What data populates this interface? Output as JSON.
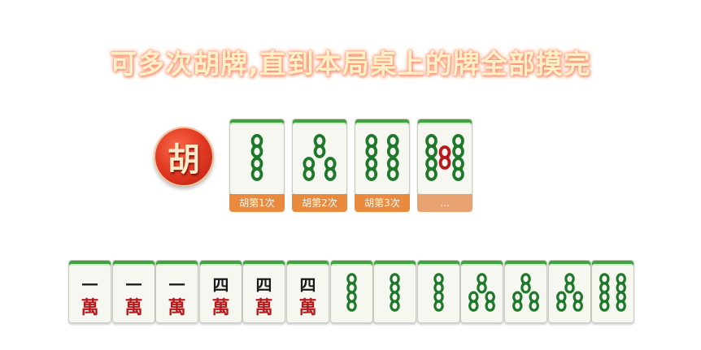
{
  "headline": "可多次胡牌,直到本局桌上的牌全部摸完",
  "badge": {
    "char": "胡",
    "color": "#e33b24"
  },
  "hu_tiles": [
    {
      "suit": "bamboo",
      "rank": 2,
      "caption": "胡第1次"
    },
    {
      "suit": "bamboo",
      "rank": 3,
      "caption": "胡第2次"
    },
    {
      "suit": "bamboo",
      "rank": 4,
      "caption": "胡第3次"
    },
    {
      "suit": "bamboo",
      "rank": 5,
      "caption": "..."
    }
  ],
  "hand": [
    {
      "suit": "wan",
      "rank_char": "一",
      "wan_char": "萬"
    },
    {
      "suit": "wan",
      "rank_char": "一",
      "wan_char": "萬"
    },
    {
      "suit": "wan",
      "rank_char": "一",
      "wan_char": "萬"
    },
    {
      "suit": "wan",
      "rank_char": "四",
      "wan_char": "萬"
    },
    {
      "suit": "wan",
      "rank_char": "四",
      "wan_char": "萬"
    },
    {
      "suit": "wan",
      "rank_char": "四",
      "wan_char": "萬"
    },
    {
      "suit": "bamboo",
      "rank": 2
    },
    {
      "suit": "bamboo",
      "rank": 2
    },
    {
      "suit": "bamboo",
      "rank": 2
    },
    {
      "suit": "bamboo",
      "rank": 3
    },
    {
      "suit": "bamboo",
      "rank": 3
    },
    {
      "suit": "bamboo",
      "rank": 3
    },
    {
      "suit": "bamboo",
      "rank": 4
    }
  ],
  "colors": {
    "tile_face": "#f7f7f2",
    "tile_back": "#3fa342",
    "bamboo": "#1e7a2a",
    "bamboo_red": "#b8191b",
    "caption_bg": "#e98a3e"
  }
}
